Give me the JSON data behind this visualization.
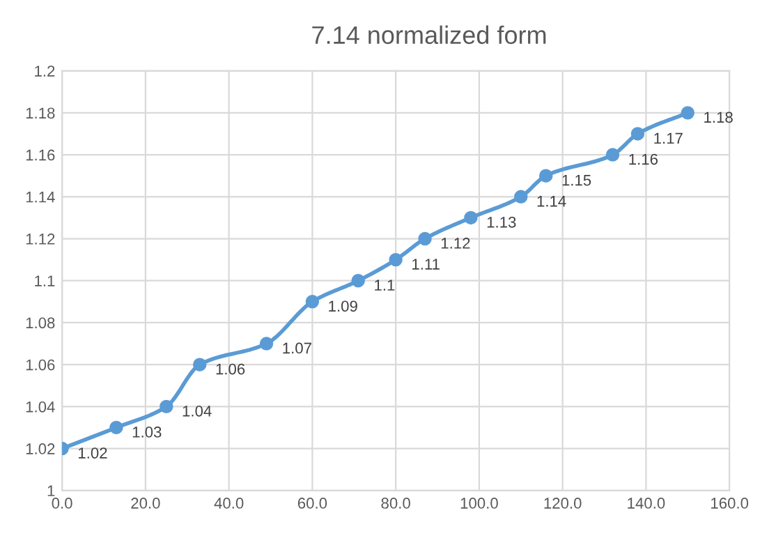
{
  "chart_data": {
    "type": "line",
    "title": "7.14 normalized form",
    "x": [
      0,
      13,
      25,
      33,
      49,
      60,
      71,
      80,
      87,
      98,
      110,
      116,
      132,
      138,
      150
    ],
    "series": [
      {
        "color": "#5b9bd5",
        "values": [
          1.02,
          1.03,
          1.04,
          1.06,
          1.07,
          1.09,
          1.1,
          1.11,
          1.12,
          1.13,
          1.14,
          1.15,
          1.16,
          1.17,
          1.18
        ]
      }
    ],
    "xlim": [
      0,
      160
    ],
    "xticks": [
      {
        "value": 0,
        "label": "0.0"
      },
      {
        "value": 20,
        "label": "20.0"
      },
      {
        "value": 40,
        "label": "40.0"
      },
      {
        "value": 60,
        "label": "60.0"
      },
      {
        "value": 80,
        "label": "80.0"
      },
      {
        "value": 100,
        "label": "100.0"
      },
      {
        "value": 120,
        "label": "120.0"
      },
      {
        "value": 140,
        "label": "140.0"
      },
      {
        "value": 160,
        "label": "160.0"
      }
    ],
    "ylim": [
      1,
      1.2
    ],
    "yticks": [
      1,
      1.02,
      1.04,
      1.06,
      1.08,
      1.1,
      1.12,
      1.14,
      1.16,
      1.18,
      1.2
    ],
    "grid": true,
    "marker": "circle",
    "line_style": "solid",
    "data_labels": true
  }
}
